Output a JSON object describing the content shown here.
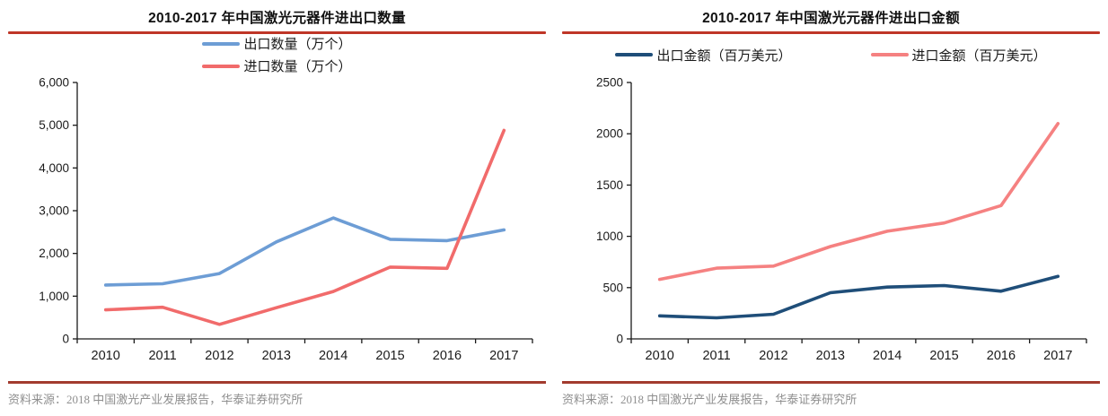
{
  "page": {
    "background": "#ffffff",
    "title_underline_color": "#bf3627",
    "separator_color": "#a23b2e",
    "source_text_color": "#8f8f8f",
    "axis_color": "#1a1a1a"
  },
  "chart_data": [
    {
      "type": "line",
      "title": "2010-2017 年中国激光元器件进出口数量",
      "categories": [
        "2010",
        "2011",
        "2012",
        "2013",
        "2014",
        "2015",
        "2016",
        "2017"
      ],
      "series": [
        {
          "name": "出口数量（万个）",
          "color": "#6d9dd5",
          "values": [
            1260,
            1290,
            1530,
            2270,
            2830,
            2330,
            2300,
            2550
          ]
        },
        {
          "name": "进口数量（万个）",
          "color": "#f16b6b",
          "values": [
            680,
            740,
            340,
            730,
            1110,
            1680,
            1650,
            4880
          ]
        }
      ],
      "xlabel": "",
      "ylabel": "",
      "ylim": [
        0,
        6000
      ],
      "y_tick_step": 1000,
      "y_tick_labels": [
        "0",
        "1,000",
        "2,000",
        "3,000",
        "4,000",
        "5,000",
        "6,000"
      ],
      "y_tick_format": "comma",
      "grid": false,
      "legend_position": "top-center-stacked",
      "source": "资料来源：2018 中国激光产业发展报告，华泰证券研究所"
    },
    {
      "type": "line",
      "title": "2010-2017 年中国激光元器件进出口金额",
      "categories": [
        "2010",
        "2011",
        "2012",
        "2013",
        "2014",
        "2015",
        "2016",
        "2017"
      ],
      "series": [
        {
          "name": "出口金额（百万美元）",
          "color": "#1f4e79",
          "values": [
            225,
            205,
            240,
            450,
            505,
            520,
            465,
            610
          ]
        },
        {
          "name": "进口金额（百万美元）",
          "color": "#f58181",
          "values": [
            580,
            690,
            710,
            900,
            1050,
            1130,
            1300,
            2100
          ]
        }
      ],
      "xlabel": "",
      "ylabel": "",
      "ylim": [
        0,
        2500
      ],
      "y_tick_step": 500,
      "y_tick_labels": [
        "0",
        "500",
        "1000",
        "1500",
        "2000",
        "2500"
      ],
      "y_tick_format": "plain",
      "grid": false,
      "legend_position": "top-center-horizontal",
      "source": "资料来源：2018 中国激光产业发展报告，华泰证券研究所"
    }
  ]
}
